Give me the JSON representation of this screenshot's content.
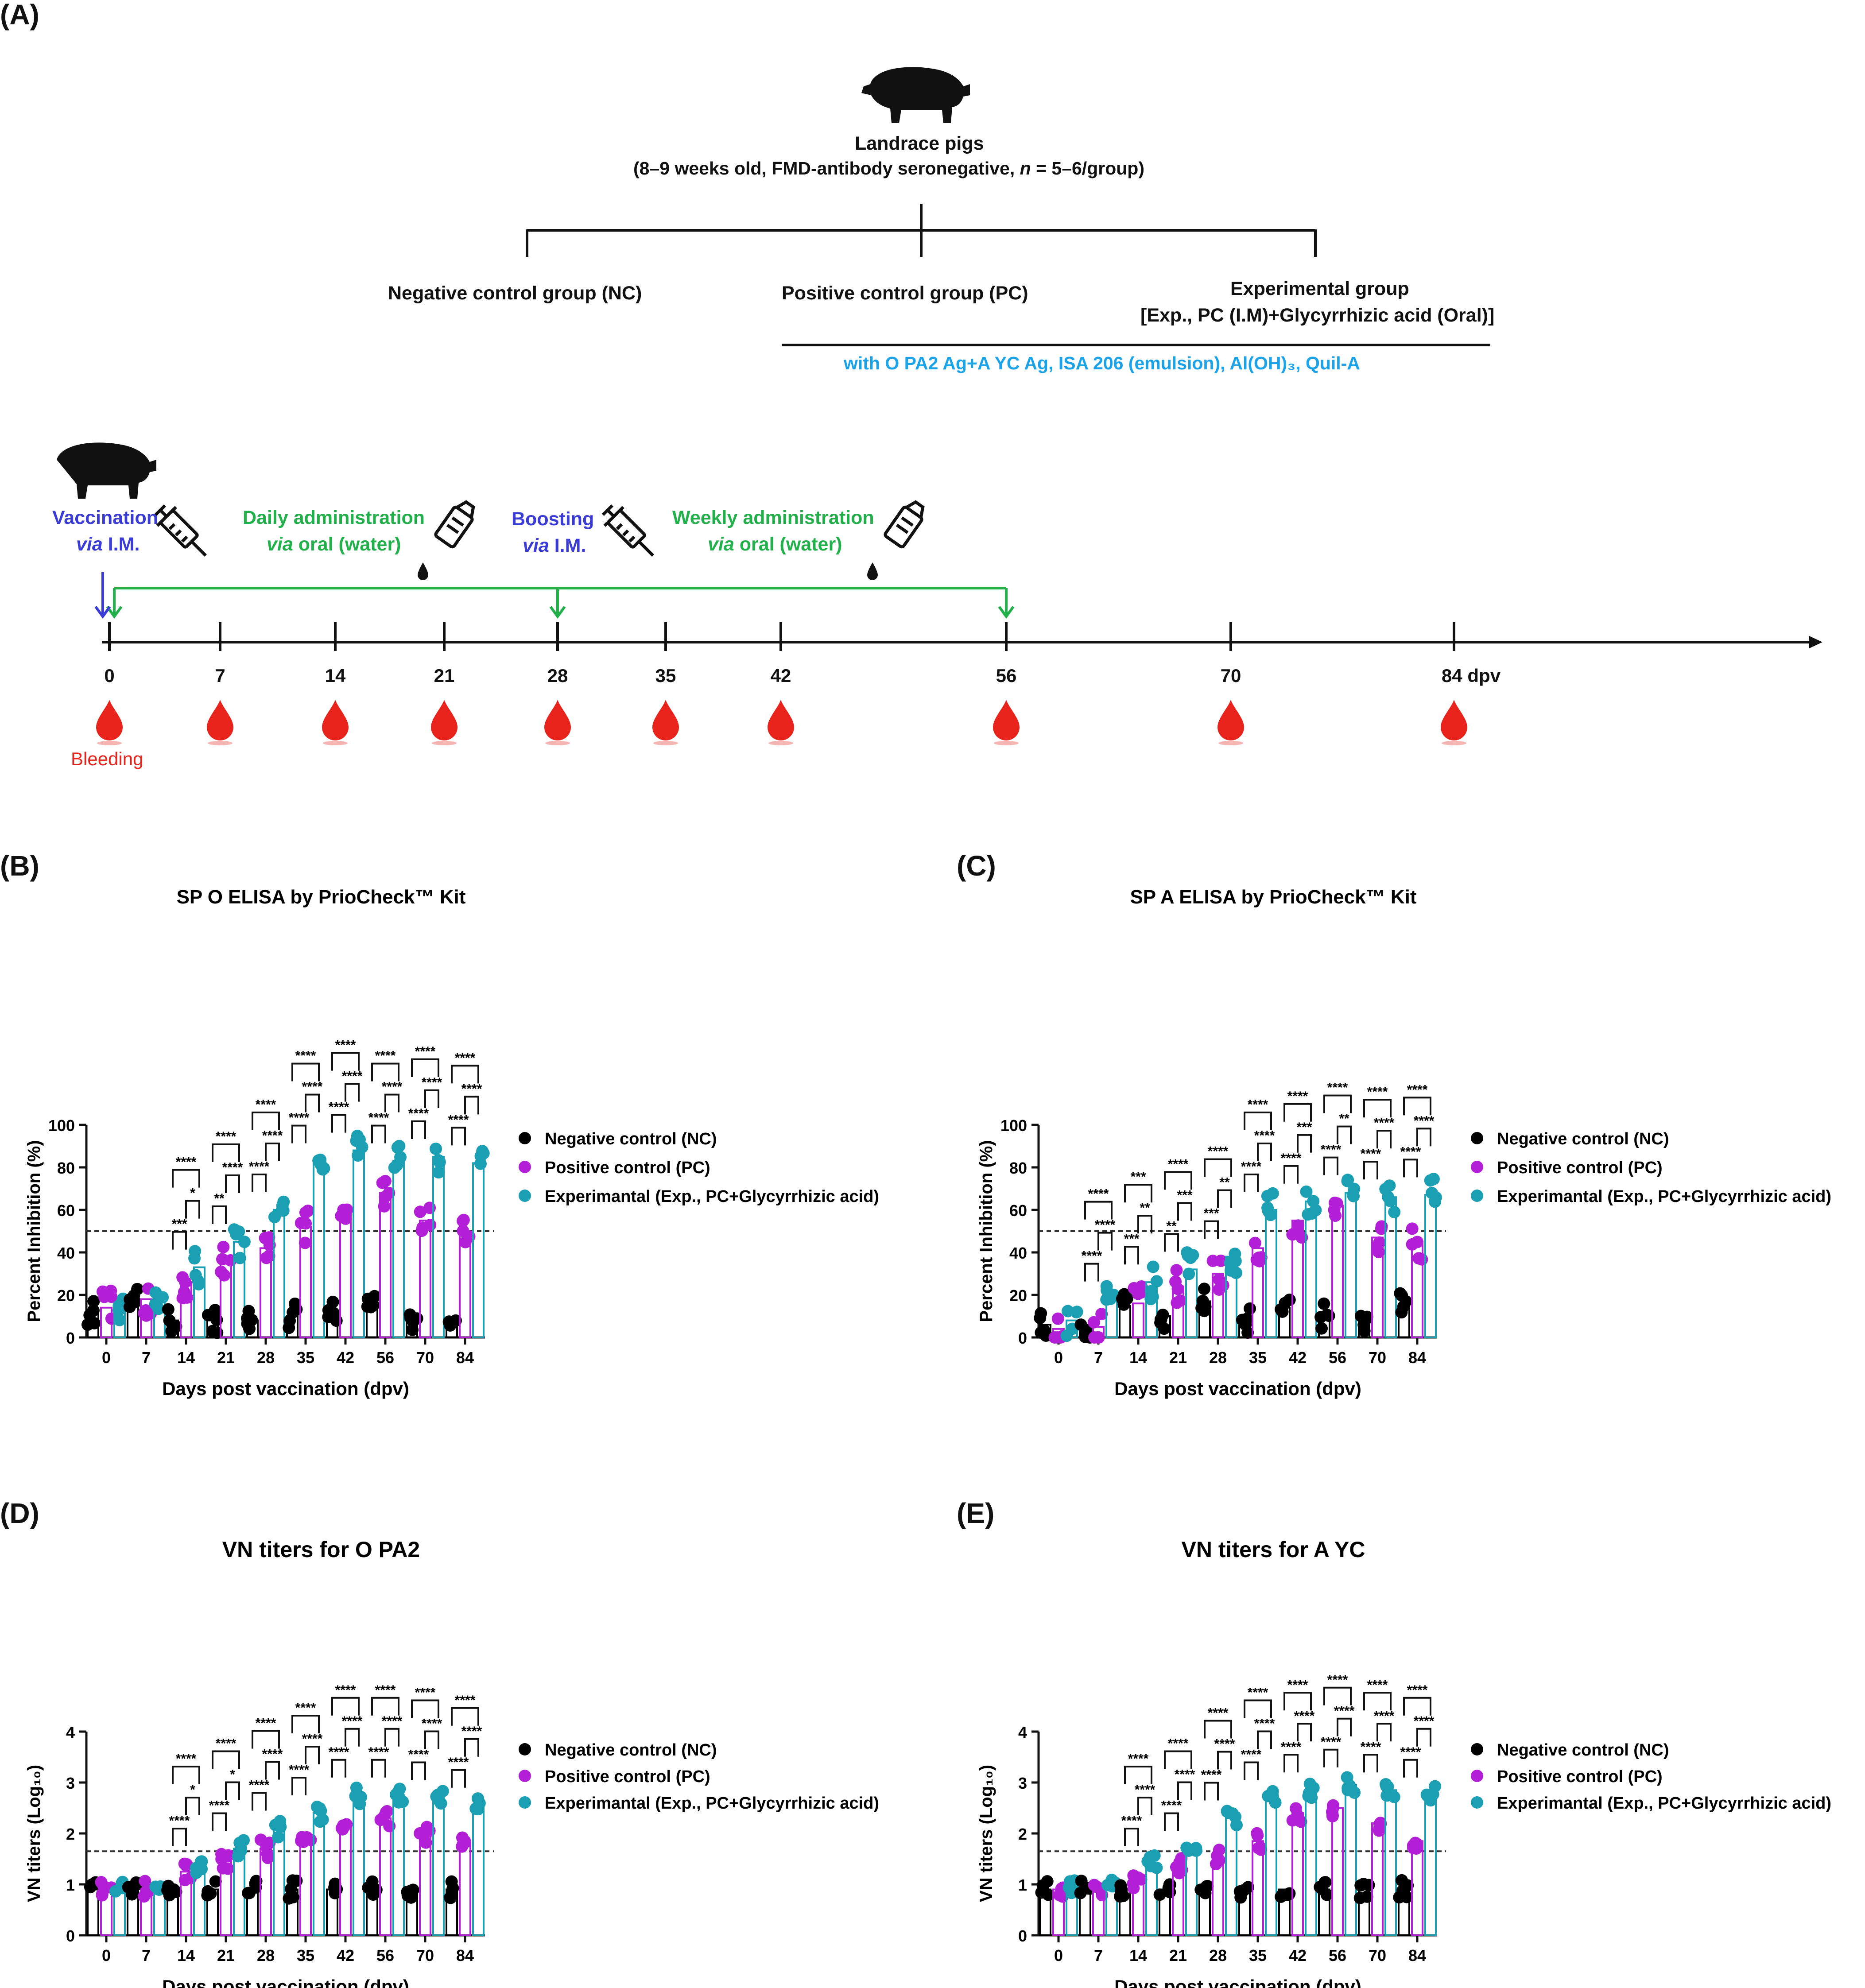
{
  "panelA": {
    "letter": "(A)",
    "subjects_title": "Landrace pigs",
    "subjects_detail_1": "(8–9 weeks old, FMD-antibody seronegative, ",
    "subjects_detail_n": "n",
    "subjects_detail_2": " = 5–6/group)",
    "group_nc": "Negative control group (NC)",
    "group_pc": "Positive control group (PC)",
    "group_exp_title": "Experimental group",
    "group_exp_detail": "[Exp., PC (I.M)+Glycyrrhizic acid (Oral)]",
    "vaccine_note": "with O PA2 Ag+A YC Ag, ISA 206 (emulsion), Al(OH)₃, Quil-A",
    "vaccination_label": "Vaccination",
    "vaccination_route_via": "via",
    "vaccination_route": " I.M.",
    "daily_label": "Daily administration",
    "daily_route_via": "via",
    "daily_route": " oral (water)",
    "boosting_label": "Boosting",
    "boosting_route_via": "via",
    "boosting_route": " I.M.",
    "weekly_label": "Weekly administration",
    "weekly_route_via": "via",
    "weekly_route": " oral (water)",
    "bleeding_label": "Bleeding",
    "timeline_days": [
      "0",
      "7",
      "14",
      "21",
      "28",
      "35",
      "42",
      "56",
      "70",
      "84 dpv"
    ],
    "colors": {
      "blue": "#3b3bd6",
      "green": "#22b04b",
      "cyan": "#1aa3e8",
      "red": "#e8231c"
    }
  },
  "legend": {
    "nc": "Negative control (NC)",
    "pc": "Positive control (PC)",
    "exp": "Experimantal (Exp., PC+Glycyrrhizic acid)",
    "colors": {
      "nc": "#000000",
      "pc": "#b21fd6",
      "exp": "#1a9fb3"
    }
  },
  "chart_data": [
    {
      "id": "B",
      "letter": "(B)",
      "type": "bar",
      "title": "SP O ELISA by PrioCheck™ Kit",
      "xlabel": "Days post vaccination (dpv)",
      "ylabel": "Percent Inhibition (%)",
      "categories": [
        "0",
        "7",
        "14",
        "21",
        "28",
        "35",
        "42",
        "56",
        "70",
        "84"
      ],
      "ylim": [
        0,
        100
      ],
      "yticks": [
        "0",
        "20",
        "40",
        "60",
        "80",
        "100"
      ],
      "threshold": 50,
      "series": [
        {
          "name": "Negative control (NC)",
          "values": [
            12,
            19,
            8,
            8,
            8,
            10,
            12,
            16,
            8,
            5
          ]
        },
        {
          "name": "Positive control (PC)",
          "values": [
            14,
            18,
            26,
            36,
            42,
            52,
            58,
            68,
            55,
            48
          ]
        },
        {
          "name": "Experimantal (Exp., PC+Glycyrrhizic acid)",
          "values": [
            14,
            21,
            33,
            45,
            60,
            83,
            88,
            83,
            85,
            82
          ]
        }
      ],
      "sig": [
        [],
        [],
        [
          "***",
          "*",
          "****"
        ],
        [
          "**",
          "****",
          "****"
        ],
        [
          "****",
          "****",
          "****"
        ],
        [
          "****",
          "****",
          "****"
        ],
        [
          "****",
          "****",
          "****"
        ],
        [
          "****",
          "****",
          "****"
        ],
        [
          "****",
          "****",
          "****"
        ],
        [
          "****",
          "****",
          "****"
        ]
      ]
    },
    {
      "id": "C",
      "letter": "(C)",
      "type": "bar",
      "title": "SP A ELISA by PrioCheck™ Kit",
      "xlabel": "Days post vaccination (dpv)",
      "ylabel": "Percent Inhibition (%)",
      "categories": [
        "0",
        "7",
        "14",
        "21",
        "28",
        "35",
        "42",
        "56",
        "70",
        "84"
      ],
      "ylim": [
        0,
        100
      ],
      "yticks": [
        "0",
        "20",
        "40",
        "60",
        "80",
        "100"
      ],
      "threshold": 50,
      "series": [
        {
          "name": "Negative control (NC)",
          "values": [
            6,
            3,
            15,
            10,
            17,
            8,
            14,
            10,
            7,
            15
          ]
        },
        {
          "name": "Positive control (PC)",
          "values": [
            4,
            5,
            16,
            24,
            30,
            42,
            55,
            62,
            47,
            44
          ]
        },
        {
          "name": "Experimantal (Exp., PC+Glycyrrhizic acid)",
          "values": [
            8,
            18,
            26,
            32,
            38,
            60,
            64,
            68,
            66,
            67
          ]
        }
      ],
      "sig": [
        [],
        [
          "****",
          "****",
          "****"
        ],
        [
          "***",
          "**",
          "***"
        ],
        [
          "**",
          "***",
          "****"
        ],
        [
          "***",
          "**",
          "****"
        ],
        [
          "****",
          "****",
          "****"
        ],
        [
          "****",
          "***",
          "****"
        ],
        [
          "****",
          "**",
          "****"
        ],
        [
          "****",
          "****",
          "****"
        ],
        [
          "****",
          "****",
          "****"
        ]
      ]
    },
    {
      "id": "D",
      "letter": "(D)",
      "type": "bar",
      "title": "VN titers for O PA2",
      "xlabel": "Days post vaccination (dpv)",
      "ylabel": "VN titers (Log₁₀)",
      "categories": [
        "0",
        "7",
        "14",
        "21",
        "28",
        "35",
        "42",
        "56",
        "70",
        "84"
      ],
      "ylim": [
        0,
        4
      ],
      "yticks": [
        "0",
        "1",
        "2",
        "3",
        "4"
      ],
      "threshold": 1.65,
      "series": [
        {
          "name": "Negative control (NC)",
          "values": [
            0.9,
            0.9,
            0.9,
            0.9,
            0.9,
            0.9,
            0.9,
            0.9,
            0.9,
            0.9
          ]
        },
        {
          "name": "Positive control (PC)",
          "values": [
            0.9,
            0.9,
            1.25,
            1.45,
            1.7,
            1.9,
            2.2,
            2.3,
            1.95,
            1.85
          ]
        },
        {
          "name": "Experimantal (Exp., PC+Glycyrrhizic acid)",
          "values": [
            0.9,
            0.9,
            1.4,
            1.7,
            2.1,
            2.4,
            2.75,
            2.75,
            2.7,
            2.55
          ]
        }
      ],
      "sig": [
        [],
        [],
        [
          "****",
          "*",
          "****"
        ],
        [
          "****",
          "*",
          "****"
        ],
        [
          "****",
          "****",
          "****"
        ],
        [
          "****",
          "****",
          "****"
        ],
        [
          "****",
          "****",
          "****"
        ],
        [
          "****",
          "****",
          "****"
        ],
        [
          "****",
          "****",
          "****"
        ],
        [
          "****",
          "****",
          "****"
        ]
      ]
    },
    {
      "id": "E",
      "letter": "(E)",
      "type": "bar",
      "title": "VN titers for A YC",
      "xlabel": "Days post vaccination (dpv)",
      "ylabel": "VN titers (Log₁₀)",
      "categories": [
        "0",
        "7",
        "14",
        "21",
        "28",
        "35",
        "42",
        "56",
        "70",
        "84"
      ],
      "ylim": [
        0,
        4
      ],
      "yticks": [
        "0",
        "1",
        "2",
        "3",
        "4"
      ],
      "threshold": 1.65,
      "series": [
        {
          "name": "Negative control (NC)",
          "values": [
            0.9,
            0.9,
            0.9,
            0.9,
            0.9,
            0.9,
            0.9,
            0.9,
            0.9,
            0.9
          ]
        },
        {
          "name": "Positive control (PC)",
          "values": [
            0.9,
            0.9,
            1.05,
            1.35,
            1.55,
            1.85,
            2.4,
            2.5,
            2.2,
            1.85
          ]
        },
        {
          "name": "Experimantal (Exp., PC+Glycyrrhizic acid)",
          "values": [
            0.9,
            1.05,
            1.4,
            1.7,
            2.3,
            2.7,
            2.85,
            2.95,
            2.85,
            2.75
          ]
        }
      ],
      "sig": [
        [],
        [],
        [
          "****",
          "****",
          "****"
        ],
        [
          "****",
          "****",
          "****"
        ],
        [
          "****",
          "****",
          "****"
        ],
        [
          "****",
          "****",
          "****"
        ],
        [
          "****",
          "****",
          "****"
        ],
        [
          "****",
          "****",
          "****"
        ],
        [
          "****",
          "****",
          "****"
        ],
        [
          "****",
          "****",
          "****"
        ]
      ]
    }
  ]
}
